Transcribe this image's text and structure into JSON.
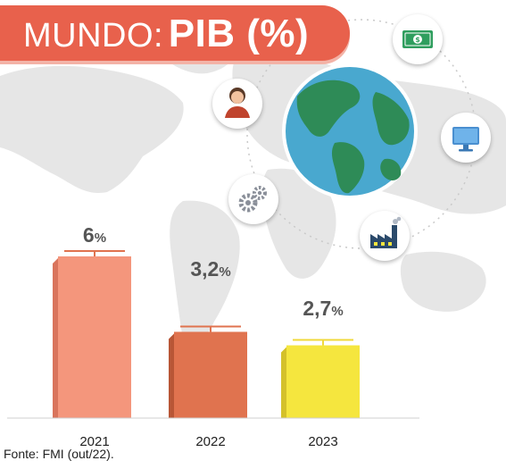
{
  "title": {
    "prefix": "MUNDO:",
    "main": "PIB (%)"
  },
  "source": "Fonte: FMI (out/22).",
  "colors": {
    "banner": "#e8614c",
    "bar_2021": "#f4967c",
    "bar_2022": "#e0734f",
    "bar_2023": "#f5e63e",
    "globe_ocean": "#49a8cf",
    "globe_land": "#2e8b57"
  },
  "icons": [
    "person-icon",
    "money-icon",
    "monitor-icon",
    "gears-icon",
    "factory-icon",
    "globe-icon"
  ],
  "chart_data": {
    "type": "bar",
    "title": "MUNDO: PIB (%)",
    "categories": [
      "2021",
      "2022",
      "2023"
    ],
    "values": [
      6,
      3.2,
      2.7
    ],
    "value_labels": [
      {
        "number": "6",
        "unit": "%"
      },
      {
        "number": "3,2",
        "unit": "%"
      },
      {
        "number": "2,7",
        "unit": "%"
      }
    ],
    "unit": "%",
    "ylim": [
      0,
      6
    ],
    "grid": false,
    "legend": "none"
  }
}
